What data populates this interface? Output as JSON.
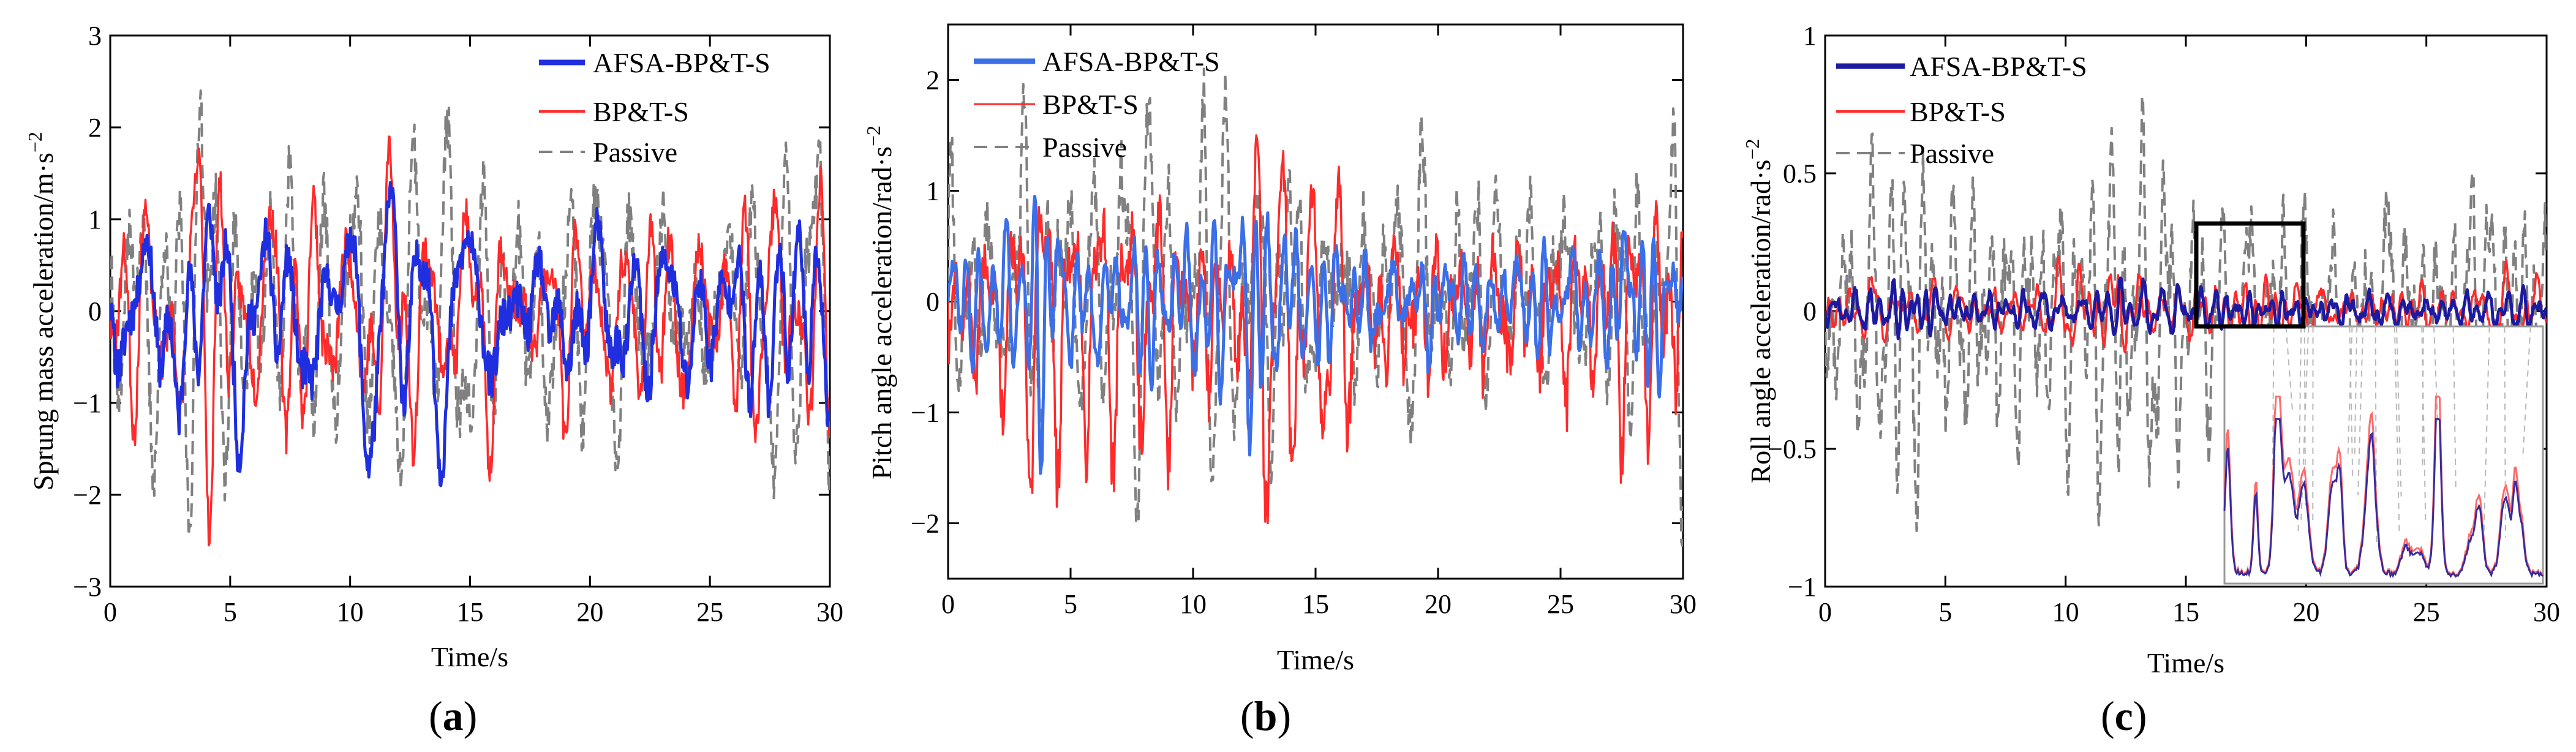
{
  "legend": {
    "afsa": "AFSA-BP&T-S",
    "bp": "BP&T-S",
    "passive": "Passive"
  },
  "colors": {
    "afsa_a": "#1f2fe0",
    "afsa_b": "#3b6fe8",
    "afsa_c": "#1c1aa0",
    "bp": "#ff2a2a",
    "passive": "#808080",
    "inset_afsa": "#3b2a9a",
    "inset_bp": "#ff6a6a"
  },
  "xlabel": "Time/s",
  "chart_data": [
    {
      "type": "line",
      "panel": "(a)",
      "label_open": "(",
      "label_letter": "a",
      "label_close": ")",
      "ylabel": "Sprung mass acceleration/m·s",
      "ylabel_exp": "−2",
      "xlim": [
        0,
        30
      ],
      "ylim": [
        -3,
        3
      ],
      "xticks": [
        "0",
        "5",
        "10",
        "15",
        "20",
        "25",
        "30"
      ],
      "yticks": [
        "−3",
        "−2",
        "−1",
        "0",
        "1",
        "2",
        "3"
      ],
      "series": [
        {
          "name": "AFSA-BP&T-S",
          "peak_max": 1.4,
          "peak_min": -1.9,
          "amplitude": 0.6
        },
        {
          "name": "BP&T-S",
          "peak_max": 1.9,
          "peak_min": -2.55,
          "amplitude": 0.75
        },
        {
          "name": "Passive",
          "peak_max": 2.4,
          "peak_min": -2.45,
          "amplitude": 1.2
        }
      ]
    },
    {
      "type": "line",
      "panel": "(b)",
      "label_open": "(",
      "label_letter": "b",
      "label_close": ")",
      "ylabel": "Pitch angle acceleration/rad·s",
      "ylabel_exp": "−2",
      "xlim": [
        0,
        30
      ],
      "ylim": [
        -2.5,
        2.5
      ],
      "xticks": [
        "0",
        "5",
        "10",
        "15",
        "20",
        "25",
        "30"
      ],
      "yticks": [
        "−2",
        "−1",
        "0",
        "1",
        "2"
      ],
      "series": [
        {
          "name": "AFSA-BP&T-S",
          "peak_max": 0.95,
          "peak_min": -1.55,
          "amplitude": 0.5
        },
        {
          "name": "BP&T-S",
          "peak_max": 1.5,
          "peak_min": -2.0,
          "amplitude": 0.65
        },
        {
          "name": "Passive",
          "peak_max": 2.1,
          "peak_min": -2.2,
          "amplitude": 1.0
        }
      ]
    },
    {
      "type": "line",
      "panel": "(c)",
      "label_open": "(",
      "label_letter": "c",
      "label_close": ")",
      "ylabel": "Roll angle acceleration/rad·s",
      "ylabel_exp": "−2",
      "xlim": [
        0,
        30
      ],
      "ylim": [
        -1,
        1
      ],
      "xticks": [
        "0",
        "5",
        "10",
        "15",
        "20",
        "25",
        "30"
      ],
      "yticks": [
        "−1",
        "−0.5",
        "0",
        "0.5",
        "1"
      ],
      "zoom_box": {
        "x_range": [
          15.8,
          20
        ],
        "y_range": [
          -0.05,
          0.3
        ]
      },
      "series": [
        {
          "name": "AFSA-BP&T-S",
          "peak_max": 0.12,
          "peak_min": -0.1,
          "amplitude": 0.05
        },
        {
          "name": "BP&T-S",
          "peak_max": 0.2,
          "peak_min": -0.15,
          "amplitude": 0.08
        },
        {
          "name": "Passive",
          "peak_max": 0.78,
          "peak_min": -0.85,
          "amplitude": 0.35
        }
      ]
    }
  ]
}
